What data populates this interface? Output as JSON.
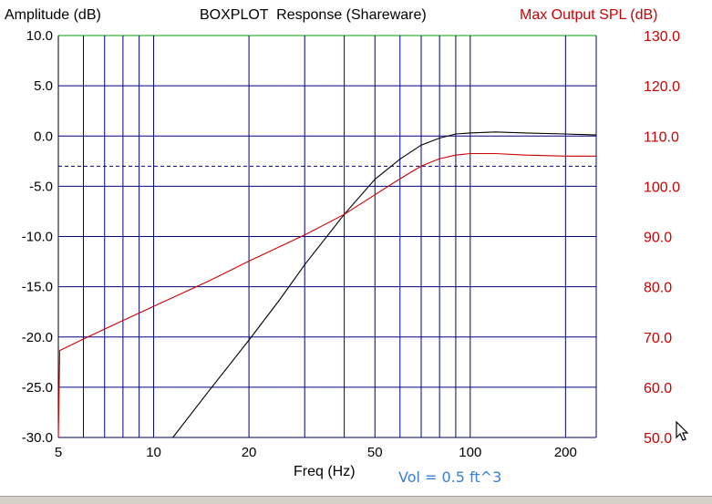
{
  "window": {
    "left_title": "Amplitude (dB)",
    "center_title": "BOXPLOT  Response (Shareware)",
    "right_title": "Max Output SPL (dB)",
    "note": "Vol = 0.5 ft^3"
  },
  "colors": {
    "grid": "#000080",
    "top_line": "#00a000",
    "amplitude": "#000000",
    "spl": "#cc0000",
    "right_axis_text": "#cc0000",
    "note_text": "#3a7fd5"
  },
  "icons": {
    "cursor": "mouse-pointer-icon"
  },
  "chart_data": {
    "type": "line",
    "xlabel": "Freq (Hz)",
    "xscale": "log",
    "xlim": [
      5,
      250
    ],
    "x_ticks": [
      5,
      10,
      20,
      50,
      100,
      200
    ],
    "x_tick_labels": [
      "5",
      "10",
      "20",
      "50",
      "100",
      "200"
    ],
    "x_minor_grid": [
      6,
      7,
      8,
      9,
      30,
      40,
      60,
      70,
      80,
      90
    ],
    "ylim": [
      -30,
      10
    ],
    "y_ticks": [
      10,
      5,
      0,
      -5,
      -10,
      -15,
      -20,
      -25,
      -30
    ],
    "y_tick_labels": [
      "10.0",
      "5.0",
      "0.0",
      "-5.0",
      "-10.0",
      "-15.0",
      "-20.0",
      "-25.0",
      "-30.0"
    ],
    "ylabel": "Amplitude (dB)",
    "y2label": "Max Output SPL (dB)",
    "y2lim": [
      50,
      130
    ],
    "y2_ticks": [
      130,
      120,
      110,
      100,
      90,
      80,
      70,
      60,
      50
    ],
    "y2_tick_labels": [
      "130.0",
      "120.0",
      "110.0",
      "100.0",
      "90.0",
      "80.0",
      "70.0",
      "60.0",
      "50.0"
    ],
    "reference_line": {
      "y": -3,
      "style": "dashed"
    },
    "grid": true,
    "series": [
      {
        "axis": "left",
        "x": [
          11.5,
          15,
          20,
          25,
          30,
          40,
          50,
          60,
          70,
          80,
          90,
          100,
          120,
          150,
          200,
          250
        ],
        "y": [
          -30,
          -25.3,
          -20.3,
          -16.3,
          -12.8,
          -7.8,
          -4.3,
          -2.3,
          -0.9,
          -0.2,
          0.2,
          0.3,
          0.4,
          0.3,
          0.2,
          0.1
        ]
      },
      {
        "axis": "right",
        "x": [
          5,
          5.05,
          6,
          8,
          10,
          15,
          20,
          30,
          40,
          50,
          60,
          70,
          80,
          90,
          100,
          120,
          150,
          200,
          250
        ],
        "y": [
          50,
          67.3,
          69.6,
          73.3,
          76.1,
          81.2,
          85.1,
          90.3,
          94.4,
          98.3,
          101.5,
          104,
          105.5,
          106.2,
          106.5,
          106.5,
          106.2,
          106,
          106
        ]
      }
    ]
  }
}
